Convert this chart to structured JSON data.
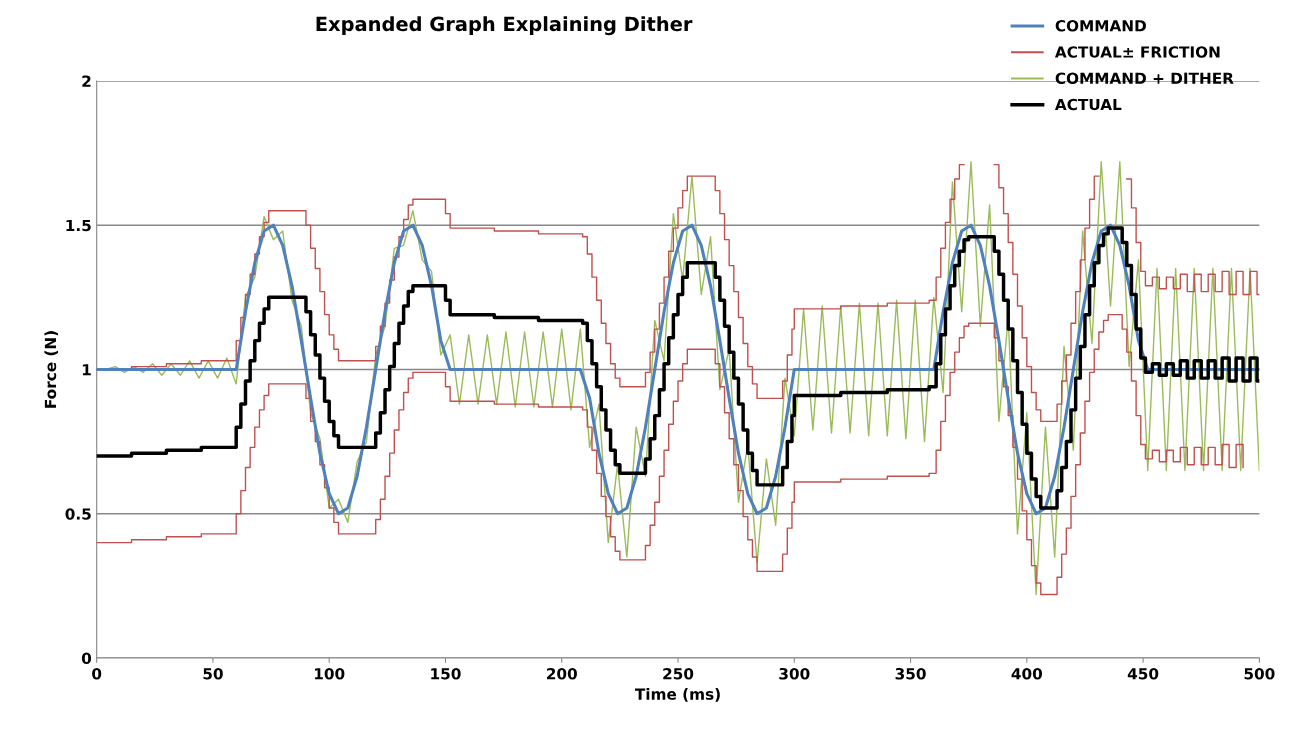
{
  "chart_data": {
    "type": "line",
    "title": "Expanded Graph Explaining Dither",
    "xlabel": "Time (ms)",
    "ylabel": "Force (N)",
    "x": [
      0,
      4,
      8,
      12,
      16,
      20,
      24,
      28,
      32,
      36,
      40,
      44,
      48,
      52,
      56,
      60,
      64,
      68,
      72,
      76,
      80,
      84,
      88,
      92,
      96,
      100,
      104,
      108,
      112,
      116,
      120,
      124,
      128,
      132,
      136,
      140,
      144,
      148,
      152,
      156,
      160,
      164,
      168,
      172,
      176,
      180,
      184,
      188,
      192,
      196,
      200,
      204,
      208,
      212,
      216,
      220,
      224,
      228,
      232,
      236,
      240,
      244,
      248,
      252,
      256,
      260,
      264,
      268,
      272,
      276,
      280,
      284,
      288,
      292,
      296,
      300,
      304,
      308,
      312,
      316,
      320,
      324,
      328,
      332,
      336,
      340,
      344,
      348,
      352,
      356,
      360,
      364,
      368,
      372,
      376,
      380,
      384,
      388,
      392,
      396,
      400,
      404,
      408,
      412,
      416,
      420,
      424,
      428,
      432,
      436,
      440,
      444,
      448,
      452,
      456,
      460,
      464,
      468,
      472,
      476,
      480,
      484,
      488,
      492,
      496,
      500
    ],
    "series": [
      {
        "name": "COMMAND",
        "color": "#4f81bd",
        "values": [
          1,
          1,
          1,
          1,
          1,
          1,
          1,
          1,
          1,
          1,
          1,
          1,
          1,
          1,
          1,
          1,
          1.2,
          1.37,
          1.48,
          1.5,
          1.43,
          1.29,
          1.1,
          0.9,
          0.71,
          0.57,
          0.5,
          0.52,
          0.63,
          0.8,
          1,
          1.2,
          1.37,
          1.48,
          1.5,
          1.43,
          1.29,
          1.1,
          1,
          1,
          1,
          1,
          1,
          1,
          1,
          1,
          1,
          1,
          1,
          1,
          1,
          1,
          1,
          0.9,
          0.71,
          0.57,
          0.5,
          0.52,
          0.63,
          0.8,
          1,
          1.2,
          1.37,
          1.48,
          1.5,
          1.43,
          1.29,
          1.1,
          0.9,
          0.71,
          0.57,
          0.5,
          0.52,
          0.63,
          0.8,
          1,
          1,
          1,
          1,
          1,
          1,
          1,
          1,
          1,
          1,
          1,
          1,
          1,
          1,
          1,
          1,
          1.2,
          1.37,
          1.48,
          1.5,
          1.43,
          1.29,
          1.1,
          0.9,
          0.71,
          0.57,
          0.5,
          0.52,
          0.63,
          0.8,
          1,
          1.2,
          1.37,
          1.48,
          1.5,
          1.43,
          1.29,
          1.1,
          1,
          1,
          1,
          1,
          1,
          1,
          1,
          1,
          1,
          1,
          1,
          1,
          1
        ]
      },
      {
        "name": "ACTUAL± FRICTION",
        "type": "step",
        "color": "#c0504d",
        "x": [
          0,
          15,
          30,
          45,
          60,
          62,
          64,
          66,
          68,
          70,
          72,
          74,
          90,
          92,
          94,
          96,
          98,
          100,
          102,
          104,
          120,
          122,
          124,
          126,
          128,
          130,
          132,
          134,
          136,
          150,
          152,
          171,
          190,
          209,
          211,
          213,
          215,
          217,
          219,
          221,
          223,
          225,
          236,
          238,
          240,
          242,
          244,
          246,
          248,
          250,
          252,
          254,
          266,
          268,
          270,
          272,
          274,
          276,
          278,
          280,
          282,
          284,
          295,
          297,
          299,
          300,
          320,
          340,
          358,
          361,
          363,
          365,
          367,
          369,
          371,
          373,
          375,
          386,
          388,
          390,
          392,
          394,
          396,
          398,
          400,
          402,
          404,
          406,
          413,
          415,
          417,
          419,
          421,
          423,
          425,
          427,
          429,
          431,
          433,
          435,
          441,
          443,
          445,
          447,
          449,
          451,
          454,
          457,
          460,
          463,
          466,
          469,
          472,
          475,
          478,
          481,
          484,
          487,
          490,
          493,
          496,
          499,
          500
        ],
        "values": [
          1.0,
          1.01,
          1.02,
          1.03,
          1.1,
          1.18,
          1.26,
          1.33,
          1.4,
          1.46,
          1.51,
          1.55,
          1.5,
          1.42,
          1.35,
          1.27,
          1.19,
          1.12,
          1.07,
          1.03,
          1.08,
          1.15,
          1.23,
          1.31,
          1.39,
          1.46,
          1.52,
          1.57,
          1.59,
          1.54,
          1.49,
          1.48,
          1.47,
          1.46,
          1.4,
          1.32,
          1.24,
          1.16,
          1.09,
          1.02,
          0.97,
          0.94,
          0.99,
          1.06,
          1.14,
          1.23,
          1.32,
          1.41,
          1.49,
          1.56,
          1.62,
          1.67,
          1.62,
          1.54,
          1.45,
          1.36,
          1.27,
          1.18,
          1.09,
          1.01,
          0.95,
          0.9,
          0.96,
          1.05,
          1.14,
          1.21,
          1.22,
          1.23,
          1.24,
          1.32,
          1.42,
          1.51,
          1.59,
          1.66,
          1.71,
          null,
          null,
          1.71,
          1.63,
          1.54,
          1.44,
          1.33,
          1.22,
          1.11,
          1.01,
          0.92,
          0.86,
          0.82,
          0.88,
          0.96,
          1.05,
          1.16,
          1.27,
          1.38,
          1.49,
          1.59,
          1.67,
          null,
          null,
          null,
          null,
          1.66,
          1.56,
          1.44,
          1.34,
          1.29,
          1.32,
          1.28,
          1.32,
          1.28,
          1.33,
          1.27,
          1.33,
          1.27,
          1.33,
          1.27,
          1.34,
          1.26,
          1.34,
          1.26,
          1.34,
          1.26,
          1.26
        ]
      },
      {
        "type": "step",
        "color": "#c0504d",
        "x": [
          0,
          15,
          30,
          45,
          60,
          62,
          64,
          66,
          68,
          70,
          72,
          74,
          90,
          92,
          94,
          96,
          98,
          100,
          102,
          104,
          120,
          122,
          124,
          126,
          128,
          130,
          132,
          134,
          136,
          150,
          152,
          171,
          190,
          209,
          211,
          213,
          215,
          217,
          219,
          221,
          223,
          225,
          236,
          238,
          240,
          242,
          244,
          246,
          248,
          250,
          252,
          254,
          266,
          268,
          270,
          272,
          274,
          276,
          278,
          280,
          282,
          284,
          295,
          297,
          299,
          300,
          320,
          340,
          358,
          361,
          363,
          365,
          367,
          369,
          371,
          373,
          375,
          386,
          388,
          390,
          392,
          394,
          396,
          398,
          400,
          402,
          404,
          406,
          413,
          415,
          417,
          419,
          421,
          423,
          425,
          427,
          429,
          431,
          433,
          435,
          441,
          443,
          445,
          447,
          449,
          451,
          454,
          457,
          460,
          463,
          466,
          469,
          472,
          475,
          478,
          481,
          484,
          487,
          490,
          493
        ],
        "values": [
          0.4,
          0.41,
          0.42,
          0.43,
          0.5,
          0.58,
          0.66,
          0.73,
          0.8,
          0.86,
          0.91,
          0.95,
          0.9,
          0.82,
          0.75,
          0.67,
          0.59,
          0.52,
          0.47,
          0.43,
          0.48,
          0.55,
          0.63,
          0.71,
          0.79,
          0.86,
          0.92,
          0.97,
          0.99,
          0.94,
          0.89,
          0.88,
          0.87,
          0.86,
          0.8,
          0.72,
          0.64,
          0.56,
          0.49,
          0.42,
          0.37,
          0.34,
          0.39,
          0.46,
          0.54,
          0.63,
          0.72,
          0.81,
          0.89,
          0.96,
          1.02,
          1.07,
          1.02,
          0.94,
          0.85,
          0.76,
          0.67,
          0.58,
          0.49,
          0.41,
          0.35,
          0.3,
          0.36,
          0.45,
          0.54,
          0.61,
          0.62,
          0.63,
          0.64,
          0.72,
          0.82,
          0.91,
          0.99,
          1.06,
          1.11,
          1.15,
          1.16,
          1.11,
          1.03,
          0.94,
          0.84,
          0.73,
          0.62,
          0.51,
          0.41,
          0.32,
          0.26,
          0.22,
          0.28,
          0.36,
          0.45,
          0.56,
          0.67,
          0.78,
          0.89,
          0.99,
          1.07,
          1.13,
          1.17,
          1.19,
          1.14,
          1.06,
          0.96,
          0.84,
          0.74,
          0.69,
          0.72,
          0.68,
          0.72,
          0.68,
          0.73,
          0.67,
          0.73,
          0.67,
          0.73,
          0.67,
          0.74,
          0.66,
          0.74,
          0.66
        ]
      },
      {
        "name": "COMMAND + DITHER",
        "color": "#9bbb59",
        "values": [
          1.0,
          1.0,
          1.01,
          0.99,
          1.01,
          0.99,
          1.02,
          0.98,
          1.02,
          0.98,
          1.03,
          0.97,
          1.03,
          0.97,
          1.04,
          0.95,
          1.25,
          1.32,
          1.53,
          1.45,
          1.48,
          1.24,
          1.15,
          0.85,
          0.76,
          0.52,
          0.55,
          0.47,
          0.68,
          0.75,
          1.05,
          1.15,
          1.42,
          1.43,
          1.55,
          1.38,
          1.34,
          1.05,
          1.12,
          0.88,
          1.12,
          0.88,
          1.12,
          0.88,
          1.13,
          0.87,
          1.13,
          0.87,
          1.13,
          0.87,
          1.14,
          0.86,
          1.14,
          0.73,
          0.88,
          0.4,
          0.67,
          0.35,
          0.8,
          0.63,
          1.17,
          1.03,
          1.54,
          1.31,
          1.67,
          1.26,
          1.46,
          0.93,
          1.07,
          0.54,
          0.74,
          0.33,
          0.69,
          0.46,
          0.97,
          0.77,
          1.21,
          0.79,
          1.22,
          0.78,
          1.22,
          0.78,
          1.23,
          0.77,
          1.23,
          0.77,
          1.24,
          0.76,
          1.24,
          0.75,
          1.25,
          0.92,
          1.65,
          1.2,
          1.72,
          1.15,
          1.57,
          0.82,
          1.18,
          0.43,
          0.85,
          0.22,
          0.8,
          0.35,
          1.08,
          0.72,
          1.48,
          1.09,
          1.72,
          1.22,
          1.72,
          1.01,
          1.38,
          0.65,
          1.35,
          0.65,
          1.35,
          0.65,
          1.35,
          0.65,
          1.35,
          0.65,
          1.35,
          0.65,
          1.35,
          0.65
        ]
      },
      {
        "name": "ACTUAL",
        "type": "step",
        "color": "#000000",
        "x": [
          0,
          15,
          30,
          45,
          60,
          62,
          64,
          66,
          68,
          70,
          72,
          74,
          90,
          92,
          94,
          96,
          98,
          100,
          102,
          104,
          120,
          122,
          124,
          126,
          128,
          130,
          132,
          134,
          136,
          150,
          152,
          171,
          190,
          209,
          211,
          213,
          215,
          217,
          219,
          221,
          223,
          225,
          236,
          238,
          240,
          242,
          244,
          246,
          248,
          250,
          252,
          254,
          266,
          268,
          270,
          272,
          274,
          276,
          278,
          280,
          282,
          284,
          295,
          297,
          299,
          300,
          320,
          340,
          358,
          361,
          363,
          365,
          367,
          369,
          371,
          373,
          375,
          386,
          388,
          390,
          392,
          394,
          396,
          398,
          400,
          402,
          404,
          406,
          413,
          415,
          417,
          419,
          421,
          423,
          425,
          427,
          429,
          431,
          433,
          435,
          441,
          443,
          445,
          447,
          449,
          451,
          454,
          457,
          460,
          463,
          466,
          469,
          472,
          475,
          478,
          481,
          484,
          487,
          490,
          493,
          496,
          499,
          500
        ],
        "values": [
          0.7,
          0.71,
          0.72,
          0.73,
          0.8,
          0.88,
          0.96,
          1.03,
          1.1,
          1.16,
          1.21,
          1.25,
          1.2,
          1.12,
          1.05,
          0.97,
          0.89,
          0.82,
          0.77,
          0.73,
          0.78,
          0.85,
          0.93,
          1.01,
          1.09,
          1.16,
          1.22,
          1.27,
          1.29,
          1.24,
          1.19,
          1.18,
          1.17,
          1.16,
          1.1,
          1.02,
          0.94,
          0.86,
          0.79,
          0.72,
          0.67,
          0.64,
          0.69,
          0.76,
          0.84,
          0.93,
          1.02,
          1.11,
          1.19,
          1.26,
          1.32,
          1.37,
          1.32,
          1.24,
          1.15,
          1.06,
          0.97,
          0.88,
          0.79,
          0.71,
          0.65,
          0.6,
          0.66,
          0.75,
          0.84,
          0.91,
          0.92,
          0.93,
          0.94,
          1.02,
          1.12,
          1.21,
          1.29,
          1.36,
          1.41,
          1.45,
          1.46,
          1.41,
          1.33,
          1.24,
          1.14,
          1.03,
          0.92,
          0.81,
          0.71,
          0.62,
          0.56,
          0.52,
          0.58,
          0.66,
          0.75,
          0.86,
          0.97,
          1.08,
          1.19,
          1.29,
          1.37,
          1.43,
          1.47,
          1.49,
          1.44,
          1.36,
          1.26,
          1.14,
          1.04,
          0.99,
          1.02,
          0.98,
          1.02,
          0.98,
          1.03,
          0.97,
          1.03,
          0.97,
          1.03,
          0.97,
          1.04,
          0.96,
          1.04,
          0.96,
          1.04,
          0.96,
          0.96
        ]
      }
    ],
    "xlim": [
      0,
      500
    ],
    "xticks": [
      0,
      50,
      100,
      150,
      200,
      250,
      300,
      350,
      400,
      450,
      500
    ],
    "ylim": [
      0,
      2
    ],
    "yticks": [
      0,
      0.5,
      1,
      1.5,
      2
    ],
    "grid": "y",
    "legend": "top right"
  }
}
